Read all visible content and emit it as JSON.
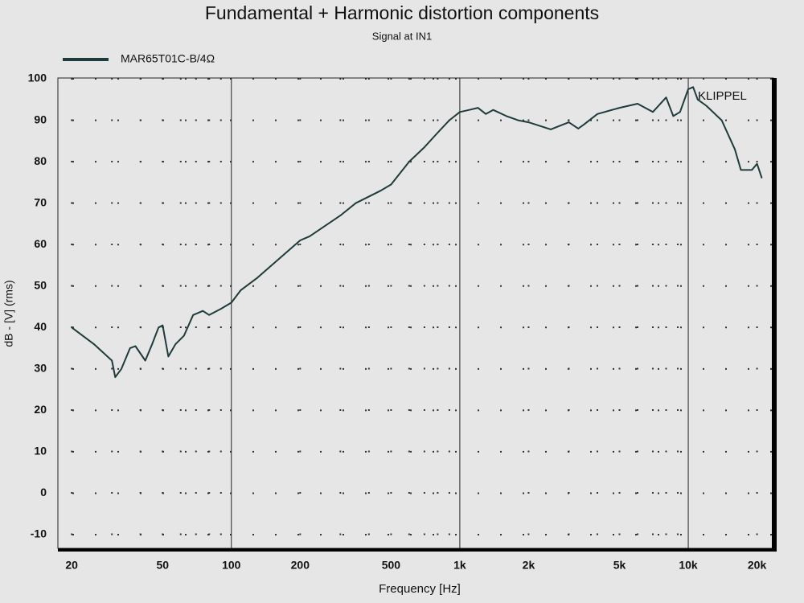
{
  "chart_data": {
    "type": "line",
    "title": "Fundamental + Harmonic distortion components",
    "subtitle": "Signal at IN1",
    "annotation": "KLIPPEL",
    "xlabel": "Frequency [Hz]",
    "ylabel": "dB - [V]  (rms)",
    "xscale": "log",
    "xlim": [
      17.4,
      23600
    ],
    "ylim": [
      -13.3,
      100.2
    ],
    "xticks": [
      20,
      50,
      100,
      200,
      500,
      {
        "value": 1000,
        "label": "1k"
      },
      {
        "value": 2000,
        "label": "2k"
      },
      {
        "value": 5000,
        "label": "5k"
      },
      {
        "value": 10000,
        "label": "10k"
      },
      {
        "value": 20000,
        "label": "20k"
      }
    ],
    "x_major_grid": [
      100,
      1000,
      10000
    ],
    "x_minor_grid": [
      20,
      30,
      40,
      50,
      60,
      70,
      80,
      90,
      200,
      300,
      400,
      500,
      600,
      700,
      800,
      900,
      2000,
      3000,
      4000,
      5000,
      6000,
      7000,
      8000,
      9000,
      20000
    ],
    "yticks": [
      -10,
      0,
      10,
      20,
      30,
      40,
      50,
      60,
      70,
      80,
      90,
      100
    ],
    "grid": true,
    "legend": "top-left",
    "x": [
      20,
      25,
      30,
      31,
      33,
      36,
      38,
      42,
      45,
      48,
      50,
      53,
      57,
      62,
      68,
      75,
      80,
      90,
      100,
      110,
      130,
      150,
      200,
      220,
      300,
      350,
      450,
      500,
      600,
      700,
      800,
      900,
      1000,
      1100,
      1200,
      1300,
      1400,
      1600,
      1800,
      2000,
      2500,
      3000,
      3300,
      3500,
      4000,
      5000,
      6000,
      7000,
      8000,
      8600,
      9200,
      10000,
      10500,
      11000,
      12000,
      14000,
      16000,
      17000,
      19000,
      20000,
      21000
    ],
    "series": [
      {
        "name": "MAR65T01C-B/4Ω",
        "color": "#1f3b3b",
        "values": [
          40,
          36,
          32,
          28,
          30,
          35,
          35.5,
          32,
          36,
          40,
          40.5,
          33,
          36,
          38,
          43,
          44,
          43,
          44.5,
          46,
          49,
          52,
          55,
          61,
          62,
          67,
          70,
          73,
          74.5,
          80,
          83.5,
          87,
          90,
          92,
          92.5,
          93,
          91.5,
          92.5,
          91,
          90,
          89.5,
          87.8,
          89.5,
          88,
          89,
          91.5,
          93,
          94,
          92,
          95.5,
          91,
          92,
          97.5,
          98,
          95,
          93.5,
          90,
          83,
          78,
          78,
          79.5,
          76
        ]
      }
    ]
  }
}
